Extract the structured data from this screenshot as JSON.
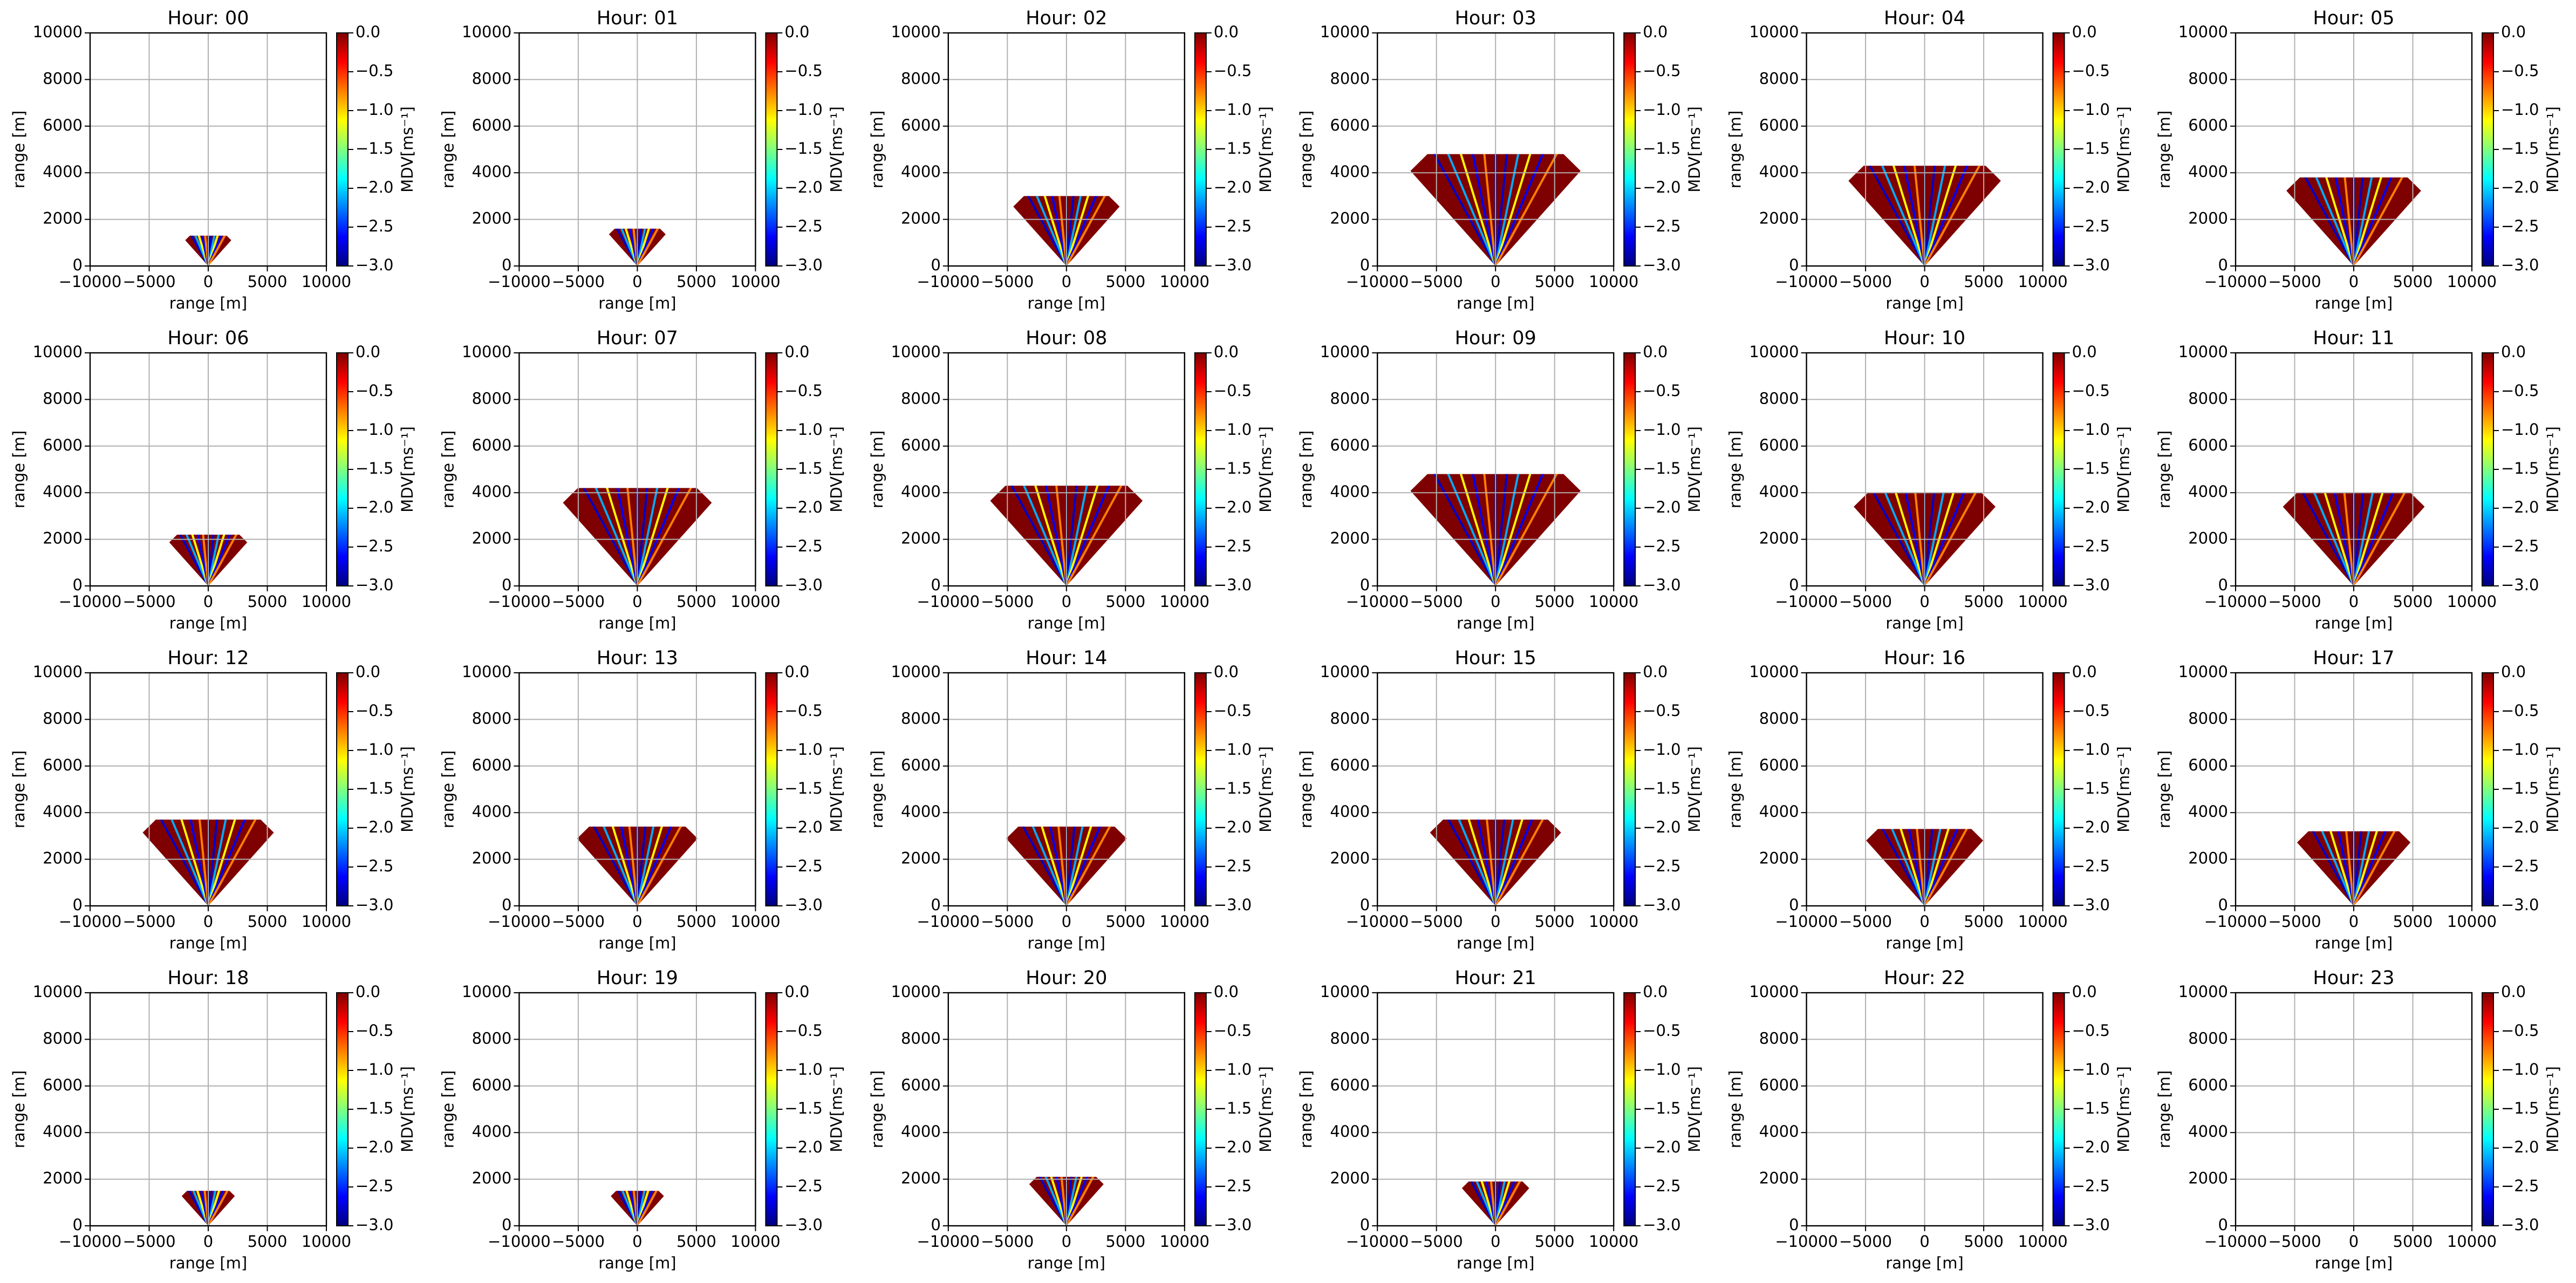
{
  "shared_axes": {
    "xlabel": "range [m]",
    "ylabel": "range [m]",
    "xlim": [
      -10000,
      10000
    ],
    "ylim": [
      0,
      10000
    ],
    "xticks": [
      {
        "value": -10000,
        "label": "−10000"
      },
      {
        "value": -5000,
        "label": "−5000"
      },
      0,
      5000,
      10000
    ],
    "yticks": [
      0,
      2000,
      4000,
      6000,
      8000,
      10000
    ],
    "grid": true,
    "colorbar": {
      "label": "MDV[ms⁻¹]",
      "clim": [
        -3,
        0
      ],
      "colormap": "jet",
      "ticks": [
        {
          "value": 0,
          "label": "0.0"
        },
        {
          "value": -0.5,
          "label": "−0.5"
        },
        {
          "value": -1,
          "label": "−1.0"
        },
        {
          "value": -1.5,
          "label": "−1.5"
        },
        {
          "value": -2,
          "label": "−2.0"
        },
        {
          "value": -2.5,
          "label": "−2.5"
        },
        {
          "value": -3,
          "label": "−3.0"
        }
      ]
    }
  },
  "chart_data": [
    {
      "type": "heatmap",
      "title": "Hour: 00",
      "data_top": 1300
    },
    {
      "type": "heatmap",
      "title": "Hour: 01",
      "data_top": 1600
    },
    {
      "type": "heatmap",
      "title": "Hour: 02",
      "data_top": 3000
    },
    {
      "type": "heatmap",
      "title": "Hour: 03",
      "data_top": 4800
    },
    {
      "type": "heatmap",
      "title": "Hour: 04",
      "data_top": 4300
    },
    {
      "type": "heatmap",
      "title": "Hour: 05",
      "data_top": 3800
    },
    {
      "type": "heatmap",
      "title": "Hour: 06",
      "data_top": 2200
    },
    {
      "type": "heatmap",
      "title": "Hour: 07",
      "data_top": 4200
    },
    {
      "type": "heatmap",
      "title": "Hour: 08",
      "data_top": 4300
    },
    {
      "type": "heatmap",
      "title": "Hour: 09",
      "data_top": 4800
    },
    {
      "type": "heatmap",
      "title": "Hour: 10",
      "data_top": 4000
    },
    {
      "type": "heatmap",
      "title": "Hour: 11",
      "data_top": 4000
    },
    {
      "type": "heatmap",
      "title": "Hour: 12",
      "data_top": 3700
    },
    {
      "type": "heatmap",
      "title": "Hour: 13",
      "data_top": 3400
    },
    {
      "type": "heatmap",
      "title": "Hour: 14",
      "data_top": 3400
    },
    {
      "type": "heatmap",
      "title": "Hour: 15",
      "data_top": 3700
    },
    {
      "type": "heatmap",
      "title": "Hour: 16",
      "data_top": 3300
    },
    {
      "type": "heatmap",
      "title": "Hour: 17",
      "data_top": 3200
    },
    {
      "type": "heatmap",
      "title": "Hour: 18",
      "data_top": 1500
    },
    {
      "type": "heatmap",
      "title": "Hour: 19",
      "data_top": 1500
    },
    {
      "type": "heatmap",
      "title": "Hour: 20",
      "data_top": 2100
    },
    {
      "type": "heatmap",
      "title": "Hour: 21",
      "data_top": 1900
    },
    {
      "type": "heatmap",
      "title": "Hour: 22",
      "data_top": null
    },
    {
      "type": "heatmap",
      "title": "Hour: 23",
      "data_top": null
    }
  ]
}
